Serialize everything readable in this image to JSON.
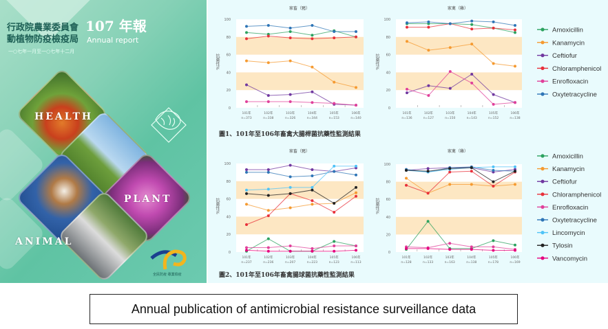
{
  "cover": {
    "org_line1": "行政院農業委員會",
    "org_line2": "動植物防疫檢疫局",
    "year_title": "107 年報",
    "subtitle": "Annual report",
    "date_range": "一○七年一月至一○七年十二月",
    "word_health": "HEALTH",
    "word_plant": "PLANT",
    "word_animal": "ANIMAL",
    "logo_text": "全民防疫‧專業檢疫"
  },
  "figure_captions": {
    "fig1": "圖1、101年至106年畜禽大腸桿菌抗藥性監測結果",
    "fig2": "圖2、101年至106年畜禽腸球菌抗藥性監測結果"
  },
  "caption": "Annual publication of antimicrobial resistance surveillance data",
  "colors": {
    "Amoxicillin": "#2ca25f",
    "Kanamycin": "#f59a30",
    "Ceftiofur": "#7038a0",
    "Chloramphenicol": "#e8303a",
    "Enrofloxacin": "#e0409a",
    "Oxytetracycline": "#2e75b6",
    "Lincomycin": "#4fc3f7",
    "Tylosin": "#222222",
    "Vancomycin": "#e6007e",
    "band": "#fde7c3"
  },
  "chart_data": [
    {
      "type": "line",
      "title": "家畜（豬）",
      "ylabel": "抗藥性%",
      "ylim": [
        0,
        100
      ],
      "yticks": [
        "0",
        "20",
        "40",
        "60",
        "80",
        "100"
      ],
      "categories": [
        [
          "101年",
          "n=373"
        ],
        [
          "102年",
          "n=338"
        ],
        [
          "103年",
          "n=326"
        ],
        [
          "104年",
          "n=344"
        ],
        [
          "105年",
          "n=153"
        ],
        [
          "106年",
          "n=140"
        ]
      ],
      "legend": false,
      "series": [
        {
          "name": "Amoxicillin",
          "values": [
            85,
            83,
            86,
            82,
            87,
            80
          ]
        },
        {
          "name": "Kanamycin",
          "values": [
            53,
            51,
            53,
            46,
            29,
            23
          ]
        },
        {
          "name": "Ceftiofur",
          "values": [
            26,
            14,
            15,
            18,
            4,
            3
          ]
        },
        {
          "name": "Chloramphenicol",
          "values": [
            78,
            81,
            79,
            78,
            79,
            80
          ]
        },
        {
          "name": "Enrofloxacin",
          "values": [
            7,
            7,
            7,
            6,
            5,
            3
          ]
        },
        {
          "name": "Oxytetracycline",
          "values": [
            92,
            93,
            90,
            93,
            86,
            86
          ]
        }
      ]
    },
    {
      "type": "line",
      "title": "家禽（雞）",
      "ylabel": "抗藥性%",
      "ylim": [
        0,
        100
      ],
      "yticks": [
        "0",
        "20",
        "40",
        "60",
        "80",
        "100"
      ],
      "categories": [
        [
          "101年",
          "n=136"
        ],
        [
          "102年",
          "n=127"
        ],
        [
          "103年",
          "n=150"
        ],
        [
          "104年",
          "n=143"
        ],
        [
          "105年",
          "n=152"
        ],
        [
          "106年",
          "n=138"
        ]
      ],
      "legend": true,
      "series": [
        {
          "name": "Amoxicillin",
          "values": [
            95,
            95,
            95,
            94,
            90,
            85
          ]
        },
        {
          "name": "Kanamycin",
          "values": [
            75,
            65,
            68,
            72,
            50,
            47
          ]
        },
        {
          "name": "Ceftiofur",
          "values": [
            17,
            25,
            22,
            38,
            15,
            6
          ]
        },
        {
          "name": "Chloramphenicol",
          "values": [
            91,
            91,
            95,
            89,
            90,
            88
          ]
        },
        {
          "name": "Enrofloxacin",
          "values": [
            21,
            14,
            41,
            28,
            4,
            6
          ]
        },
        {
          "name": "Oxytetracycline",
          "values": [
            96,
            97,
            95,
            98,
            97,
            93
          ]
        }
      ]
    },
    {
      "type": "line",
      "title": "家畜（豬）",
      "ylabel": "抗藥性%",
      "ylim": [
        0,
        100
      ],
      "yticks": [
        "0",
        "20",
        "40",
        "60",
        "80",
        "100"
      ],
      "categories": [
        [
          "101年",
          "n=237"
        ],
        [
          "102年",
          "n=236"
        ],
        [
          "103年",
          "n=207"
        ],
        [
          "104年",
          "n=223"
        ],
        [
          "105年",
          "n=123"
        ],
        [
          "106年",
          "n=113"
        ]
      ],
      "legend": false,
      "series": [
        {
          "name": "Amoxicillin",
          "values": [
            1,
            15,
            1,
            1,
            12,
            7
          ]
        },
        {
          "name": "Kanamycin",
          "values": [
            54,
            47,
            50,
            54,
            55,
            67
          ]
        },
        {
          "name": "Ceftiofur",
          "values": [
            93,
            93,
            98,
            93,
            91,
            95
          ]
        },
        {
          "name": "Chloramphenicol",
          "values": [
            31,
            41,
            66,
            58,
            45,
            63
          ]
        },
        {
          "name": "Enrofloxacin",
          "values": [
            5,
            5,
            7,
            4,
            7,
            7
          ]
        },
        {
          "name": "Oxytetracycline",
          "values": [
            90,
            90,
            85,
            86,
            91,
            87
          ]
        },
        {
          "name": "Lincomycin",
          "values": [
            70,
            71,
            73,
            73,
            97,
            97
          ]
        },
        {
          "name": "Tylosin",
          "values": [
            66,
            64,
            66,
            70,
            55,
            73
          ]
        },
        {
          "name": "Vancomycin",
          "values": [
            2,
            1,
            1,
            1,
            1,
            2
          ]
        }
      ]
    },
    {
      "type": "line",
      "title": "家禽（雞）",
      "ylabel": "抗藥性%",
      "ylim": [
        0,
        100
      ],
      "yticks": [
        "0",
        "20",
        "40",
        "60",
        "80",
        "100"
      ],
      "categories": [
        [
          "101年",
          "n=128"
        ],
        [
          "102年",
          "n=133"
        ],
        [
          "103年",
          "n=163"
        ],
        [
          "104年",
          "n=138"
        ],
        [
          "105年",
          "n=178"
        ],
        [
          "106年",
          "n=169"
        ]
      ],
      "legend": true,
      "series": [
        {
          "name": "Amoxicillin",
          "values": [
            3,
            35,
            4,
            4,
            13,
            8
          ]
        },
        {
          "name": "Kanamycin",
          "values": [
            84,
            67,
            77,
            77,
            75,
            77
          ]
        },
        {
          "name": "Ceftiofur",
          "values": [
            93,
            95,
            96,
            96,
            91,
            94
          ]
        },
        {
          "name": "Chloramphenicol",
          "values": [
            76,
            67,
            91,
            92,
            75,
            91
          ]
        },
        {
          "name": "Enrofloxacin",
          "values": [
            6,
            5,
            10,
            6,
            6,
            3
          ]
        },
        {
          "name": "Oxytetracycline",
          "values": [
            94,
            91,
            96,
            97,
            93,
            92
          ]
        },
        {
          "name": "Lincomycin",
          "values": [
            93,
            91,
            94,
            96,
            97,
            97
          ]
        },
        {
          "name": "Tylosin",
          "values": [
            93,
            92,
            95,
            96,
            80,
            92
          ]
        },
        {
          "name": "Vancomycin",
          "values": [
            4,
            4,
            3,
            3,
            2,
            2
          ]
        }
      ]
    }
  ]
}
